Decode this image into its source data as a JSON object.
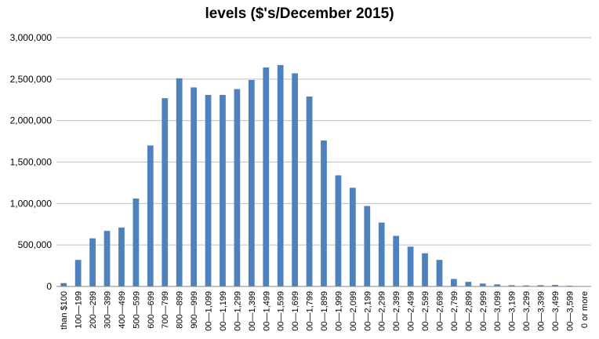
{
  "chart_data": {
    "type": "bar",
    "title": "levels ($'s/December 2015)",
    "xlabel": "",
    "ylabel": "",
    "ylim": [
      0,
      3000000
    ],
    "yticks": [
      "0",
      "500,000",
      "1,000,000",
      "1,500,000",
      "2,000,000",
      "2,500,000",
      "3,000,000"
    ],
    "ytick_values": [
      0,
      500000,
      1000000,
      1500000,
      2000000,
      2500000,
      3000000
    ],
    "grid": true,
    "legend": "none",
    "bar_color": "#4f81bd",
    "categories": [
      "than $100",
      "100—199",
      "200—299",
      "300—399",
      "400—499",
      "500—599",
      "600—699",
      "700—799",
      "800—899",
      "900—999",
      "00—1,099",
      "00—1,199",
      "00—1,299",
      "00—1,399",
      "00—1,499",
      "00—1,599",
      "00—1,699",
      "00—1,799",
      "00—1,899",
      "00—1,999",
      "00—2,099",
      "00—2,199",
      "00—2,299",
      "00—2,399",
      "00—2,499",
      "00—2,599",
      "00—2,699",
      "00—2,799",
      "00—2,899",
      "00—2,999",
      "00—3,099",
      "00—3,199",
      "00—3,299",
      "00—3,399",
      "00—3,499",
      "00—3,599",
      "0 or more"
    ],
    "values": [
      40000,
      320000,
      580000,
      670000,
      710000,
      1060000,
      1700000,
      2270000,
      2510000,
      2400000,
      2310000,
      2310000,
      2380000,
      2490000,
      2640000,
      2670000,
      2570000,
      2290000,
      1760000,
      1340000,
      1190000,
      970000,
      770000,
      610000,
      480000,
      400000,
      320000,
      90000,
      55000,
      35000,
      25000,
      15000,
      12000,
      15000,
      18000,
      8000,
      5000
    ]
  }
}
